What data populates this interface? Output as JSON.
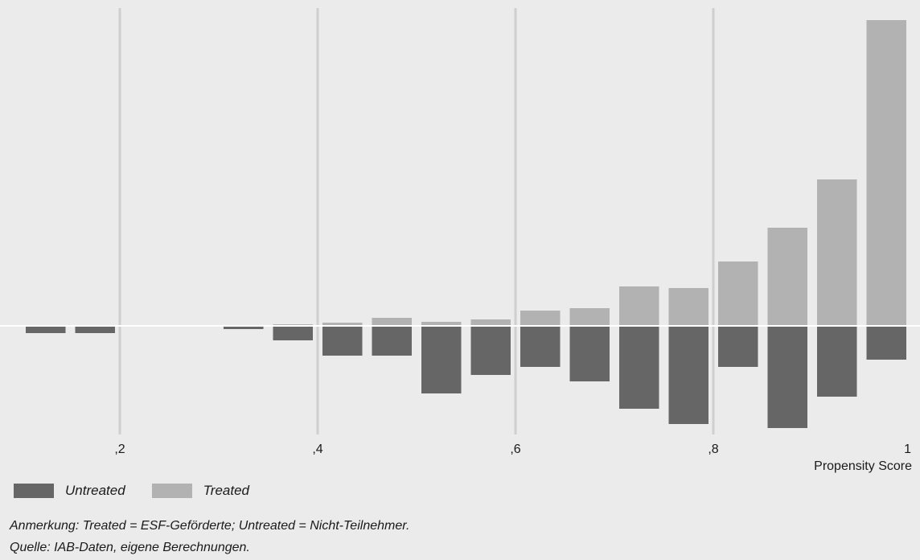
{
  "chart_data": {
    "type": "bar",
    "subtype": "mirrored-histogram",
    "xlabel": "Propensity Score",
    "ylabel": "",
    "xlim": [
      0.1,
      1.0
    ],
    "x_ticks": [
      0.2,
      0.4,
      0.6,
      0.8,
      1.0
    ],
    "x_tick_labels": [
      ",2",
      ",4",
      ",6",
      ",8",
      "1"
    ],
    "grid": "vertical",
    "legend_position": "bottom-left",
    "bin_width": 0.05,
    "bin_centers": [
      0.125,
      0.175,
      0.225,
      0.275,
      0.325,
      0.375,
      0.425,
      0.475,
      0.525,
      0.575,
      0.625,
      0.675,
      0.725,
      0.775,
      0.825,
      0.875,
      0.925,
      0.975
    ],
    "series": [
      {
        "name": "Untreated",
        "direction": "down",
        "color": "#666666",
        "values": [
          0.9,
          0.9,
          0.1,
          0.1,
          0.4,
          1.8,
          3.7,
          3.7,
          8.4,
          6.1,
          5.1,
          6.9,
          10.3,
          12.2,
          5.1,
          12.7,
          8.8,
          4.2
        ]
      },
      {
        "name": "Treated",
        "direction": "up",
        "color": "#b2b2b2",
        "values": [
          0.0,
          0.0,
          0.0,
          0.0,
          0.0,
          0.2,
          0.4,
          1.0,
          0.5,
          0.8,
          1.9,
          2.2,
          4.9,
          4.7,
          8.0,
          12.2,
          18.2,
          38.0
        ]
      }
    ],
    "ylim": [
      -13.5,
      39.5
    ]
  },
  "notes": {
    "anmerkung": "Anmerkung: Treated = ESF-Geförderte; Untreated = Nicht-Teilnehmer.",
    "quelle": "Quelle: IAB-Daten, eigene Berechnungen."
  }
}
